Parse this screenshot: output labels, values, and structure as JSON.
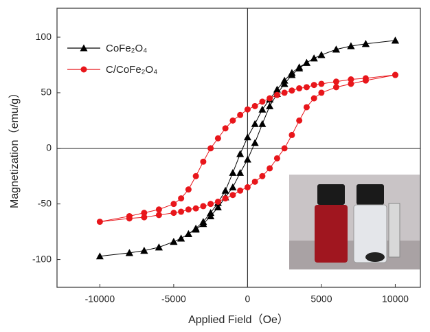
{
  "chart_data": {
    "type": "line",
    "x_label": "Applied Field（Oe）",
    "y_label": "Magnetization（emu/g）",
    "xlim": [
      -12900,
      11700
    ],
    "ylim": [
      -125,
      126
    ],
    "xticks": [
      -10000,
      -5000,
      0,
      5000,
      10000
    ],
    "yticks": [
      -100,
      -50,
      0,
      50,
      100
    ],
    "legend": "upper-left",
    "series": [
      {
        "name": "CoFe₂O₄",
        "color": "#000000",
        "marker": "triangle",
        "x": [
          10000,
          8000,
          7000,
          6000,
          5000,
          4500,
          4000,
          3500,
          3000,
          2500,
          2000,
          1500,
          1000,
          500,
          0,
          -500,
          -1000,
          -1500,
          -2000,
          -2500,
          -3000,
          -3500,
          -4000,
          -4500,
          -5000,
          -6000,
          -7000,
          -8000,
          -10000,
          -8000,
          -7000,
          -6000,
          -5000,
          -4500,
          -4000,
          -3500,
          -3000,
          -2500,
          -2000,
          -1500,
          -1000,
          -500,
          0,
          500,
          1000,
          1500,
          2000,
          2500,
          3000,
          3500,
          4000,
          4500,
          5000,
          6000,
          7000,
          8000,
          10000
        ],
        "values": [
          97,
          94,
          92,
          89,
          84,
          81,
          77,
          73,
          68,
          61,
          53,
          44,
          35,
          22,
          10,
          -5,
          -22,
          -38,
          -49,
          -58,
          -66,
          -72,
          -77,
          -81,
          -84,
          -89,
          -92,
          -94,
          -97,
          -94,
          -92,
          -89,
          -84,
          -81,
          -77,
          -73,
          -68,
          -61,
          -53,
          -44,
          -35,
          -22,
          -10,
          5,
          22,
          38,
          49,
          58,
          66,
          72,
          77,
          81,
          84,
          89,
          92,
          94,
          97
        ]
      },
      {
        "name": "C/CoFe₂O₄",
        "color": "#e8161b",
        "marker": "circle",
        "x": [
          10000,
          8000,
          7000,
          6000,
          5000,
          4500,
          4000,
          3500,
          3000,
          2500,
          2000,
          1500,
          1000,
          500,
          0,
          -500,
          -1000,
          -1500,
          -2000,
          -2500,
          -3000,
          -3500,
          -4000,
          -4500,
          -5000,
          -6000,
          -7000,
          -8000,
          -10000,
          -8000,
          -7000,
          -6000,
          -5000,
          -4500,
          -4000,
          -3500,
          -3000,
          -2500,
          -2000,
          -1500,
          -1000,
          -500,
          0,
          500,
          1000,
          1500,
          2000,
          2500,
          3000,
          3500,
          4000,
          4500,
          5000,
          6000,
          7000,
          8000,
          10000
        ],
        "values": [
          66,
          63,
          62,
          60,
          58,
          57,
          55,
          54,
          52,
          50,
          48,
          45,
          42,
          38,
          35,
          30,
          25,
          18,
          9,
          0,
          -12,
          -25,
          -37,
          -45,
          -50,
          -55,
          -58,
          -61,
          -66,
          -63,
          -62,
          -60,
          -58,
          -57,
          -55,
          -54,
          -52,
          -50,
          -48,
          -45,
          -42,
          -38,
          -35,
          -30,
          -25,
          -18,
          -9,
          0,
          12,
          25,
          37,
          45,
          50,
          55,
          58,
          61,
          66
        ]
      }
    ]
  }
}
